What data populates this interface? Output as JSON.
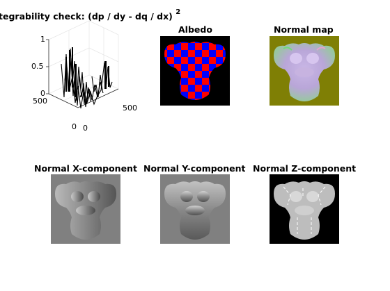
{
  "figure": {
    "plot3d": {
      "title_text": "tegrability check: (dp / dy - dq / dx)",
      "title_exponent": "2",
      "z_ticks": [
        "1",
        "0.5",
        "0"
      ],
      "y_ticks": [
        "500",
        "0"
      ],
      "x_ticks": [
        "0",
        "500"
      ]
    },
    "panels": [
      {
        "title": "Albedo"
      },
      {
        "title": "Normal map"
      },
      {
        "title": "Normal X-component"
      },
      {
        "title": "Normal Y-component"
      },
      {
        "title": "Normal Z-component"
      }
    ]
  },
  "chart_data": [
    {
      "type": "surface",
      "title": "tegrability check: (dp / dy - dq / dx)^2",
      "zlim": [
        0,
        1
      ],
      "xlim": [
        0,
        500
      ],
      "ylim": [
        0,
        500
      ],
      "zticks": [
        0,
        0.5,
        1
      ],
      "xticks": [
        0,
        500
      ],
      "yticks": [
        0,
        500
      ],
      "grid": true
    },
    {
      "type": "image",
      "title": "Albedo",
      "colors": [
        "#000000",
        "#ff0000",
        "#0000ff"
      ]
    },
    {
      "type": "image",
      "title": "Normal map",
      "background": "#808000"
    },
    {
      "type": "image",
      "title": "Normal X-component",
      "background": "#808080"
    },
    {
      "type": "image",
      "title": "Normal Y-component",
      "background": "#808080"
    },
    {
      "type": "image",
      "title": "Normal Z-component",
      "background": "#000000"
    }
  ]
}
